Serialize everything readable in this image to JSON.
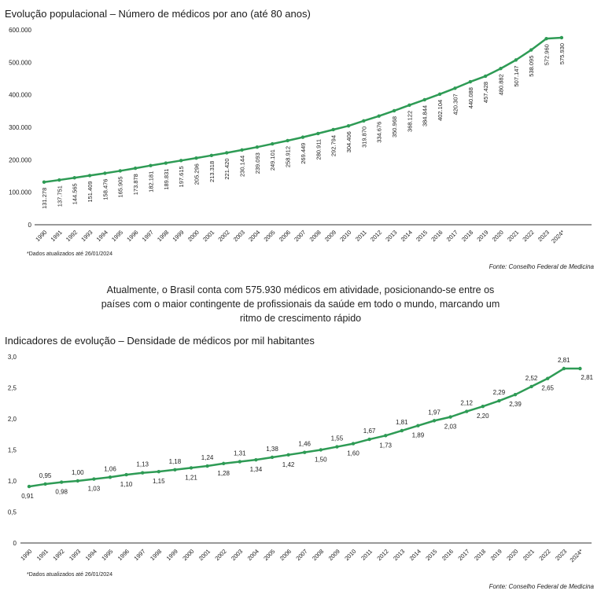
{
  "charts": {
    "population": {
      "title": "Evolução populacional – Número de médicos por ano (até 80 anos)",
      "note": "*Dados atualizados até 26/01/2024",
      "source": "Fonte: Conselho Federal de Medicina"
    },
    "density": {
      "title": "Indicadores de evolução – Densidade de médicos por mil habitantes",
      "note": "*Dados atualizados até 26/01/2024",
      "source": "Fonte: Conselho Federal de Medicina"
    }
  },
  "summary": "Atualmente, o Brasil conta com 575.930 médicos em atividade, posicionando-se entre os países com o maior contingente de profissionais da saúde em todo o mundo, marcando um ritmo de crescimento rápido",
  "colors": {
    "line": "#2e9b55",
    "axis": "#333333"
  },
  "chart_data": [
    {
      "type": "line",
      "title": "Evolução populacional – Número de médicos por ano (até 80 anos)",
      "categories": [
        "1990",
        "1991",
        "1992",
        "1993",
        "1994",
        "1995",
        "1996",
        "1997",
        "1998",
        "1999",
        "2000",
        "2001",
        "2002",
        "2003",
        "2004",
        "2005",
        "2006",
        "2007",
        "2008",
        "2009",
        "2010",
        "2011",
        "2012",
        "2013",
        "2014",
        "2015",
        "2016",
        "2017",
        "2018",
        "2019",
        "2020",
        "2021",
        "2022",
        "2023",
        "2024*"
      ],
      "values": [
        131278,
        137751,
        144565,
        151409,
        158476,
        165905,
        173878,
        182181,
        189831,
        197615,
        205296,
        213318,
        221420,
        230144,
        239093,
        249101,
        258912,
        269449,
        280911,
        292794,
        304406,
        319870,
        334676,
        350968,
        368122,
        384844,
        402104,
        420307,
        440088,
        457428,
        480882,
        507147,
        538095,
        572960,
        575930
      ],
      "data_labels": [
        "131.278",
        "137.751",
        "144.565",
        "151.409",
        "158.476",
        "165.905",
        "173.878",
        "182.181",
        "189.831",
        "197.615",
        "205.296",
        "213.318",
        "221.420",
        "230.144",
        "239.093",
        "249.101",
        "258.912",
        "269.449",
        "280.911",
        "292.794",
        "304.406",
        "319.870",
        "334.676",
        "350.968",
        "368.122",
        "384.844",
        "402.104",
        "420.307",
        "440.088",
        "457.428",
        "480.882",
        "507.147",
        "538.095",
        "572.960",
        "575.930"
      ],
      "ylim": [
        0,
        600000
      ],
      "yticks": [
        0,
        100000,
        200000,
        300000,
        400000,
        500000,
        600000
      ],
      "ytick_labels": [
        "0",
        "100.000",
        "200.000",
        "300.000",
        "400.000",
        "500.000",
        "600.000"
      ],
      "grid": false
    },
    {
      "type": "line",
      "title": "Indicadores de evolução – Densidade de médicos por mil habitantes",
      "categories": [
        "1990",
        "1991",
        "1992",
        "1993",
        "1994",
        "1995",
        "1996",
        "1997",
        "1998",
        "1999",
        "2000",
        "2001",
        "2002",
        "2003",
        "2004",
        "2005",
        "2006",
        "2007",
        "2008",
        "2009",
        "2010",
        "2011",
        "2012",
        "2013",
        "2014",
        "2015",
        "2016",
        "2017",
        "2018",
        "2019",
        "2020",
        "2021",
        "2022",
        "2023",
        "2024*"
      ],
      "values": [
        0.91,
        0.95,
        0.98,
        1.0,
        1.03,
        1.06,
        1.1,
        1.13,
        1.15,
        1.18,
        1.21,
        1.24,
        1.28,
        1.31,
        1.34,
        1.38,
        1.42,
        1.46,
        1.5,
        1.55,
        1.6,
        1.67,
        1.73,
        1.81,
        1.89,
        1.97,
        2.03,
        2.12,
        2.2,
        2.29,
        2.39,
        2.52,
        2.65,
        2.81,
        2.81
      ],
      "data_labels": [
        "0,91",
        "0,95",
        "0,98",
        "1,00",
        "1,03",
        "1,06",
        "1,10",
        "1,13",
        "1,15",
        "1,18",
        "1,21",
        "1,24",
        "1,28",
        "1,31",
        "1,34",
        "1,38",
        "1,42",
        "1,46",
        "1,50",
        "1,55",
        "1,60",
        "1,67",
        "1,73",
        "1,81",
        "1,89",
        "1,97",
        "2,03",
        "2,12",
        "2,20",
        "2,29",
        "2,39",
        "2,52",
        "2,65",
        "2,81",
        "2,81"
      ],
      "ylim": [
        0,
        3.0
      ],
      "yticks": [
        0,
        0.5,
        1.0,
        1.5,
        2.0,
        2.5,
        3.0
      ],
      "ytick_labels": [
        "0",
        "0,5",
        "1,0",
        "1,5",
        "2,0",
        "2,5",
        "3,0"
      ],
      "grid": false
    }
  ]
}
